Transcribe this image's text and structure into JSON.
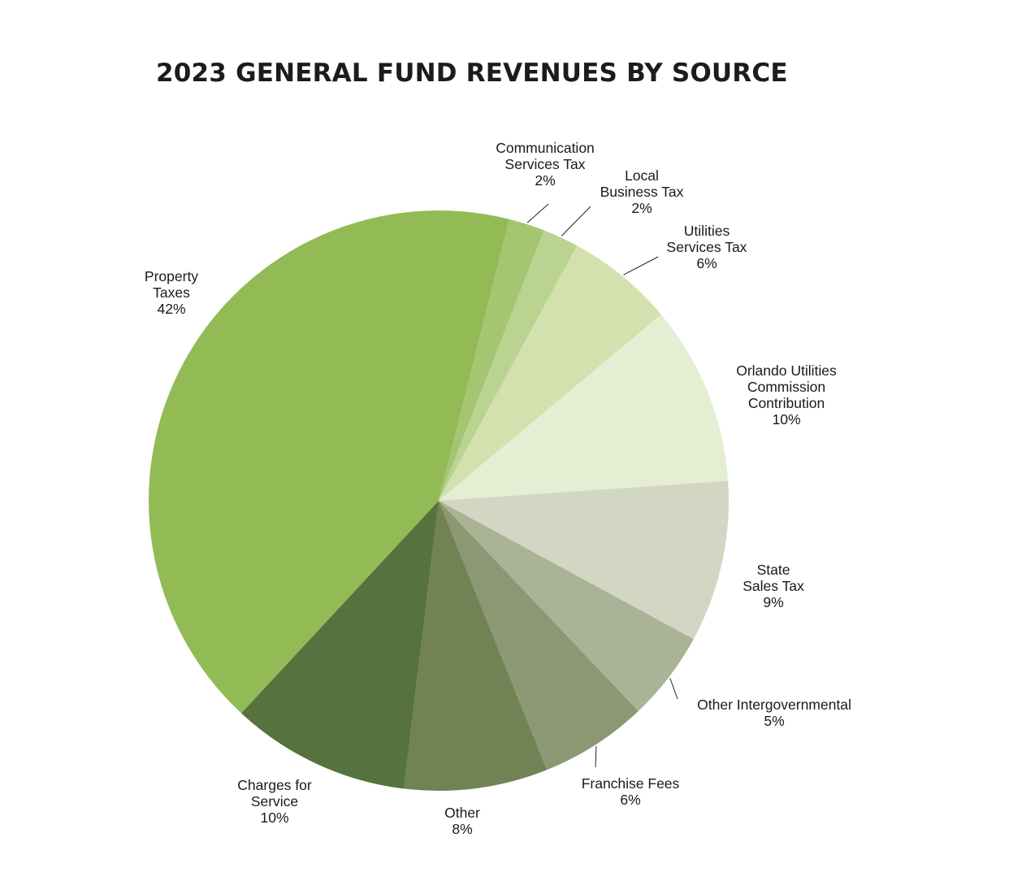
{
  "chart_data": {
    "type": "pie",
    "title": "2023 GENERAL FUND REVENUES BY SOURCE",
    "slices": [
      {
        "label_lines": [
          "Communication",
          "Services Tax"
        ],
        "label": "Communication Services Tax",
        "value": 2,
        "value_text": "2%",
        "color": "#a4c572"
      },
      {
        "label_lines": [
          "Local",
          "Business Tax"
        ],
        "label": "Local Business Tax",
        "value": 2,
        "value_text": "2%",
        "color": "#bad390"
      },
      {
        "label_lines": [
          "Utilities",
          "Services Tax"
        ],
        "label": "Utilities Services Tax",
        "value": 6,
        "value_text": "6%",
        "color": "#d2e1ae"
      },
      {
        "label_lines": [
          "Orlando Utilities",
          "Commission",
          "Contribution"
        ],
        "label": "Orlando Utilities Commission Contribution",
        "value": 10,
        "value_text": "10%",
        "color": "#e4eed3"
      },
      {
        "label_lines": [
          "State",
          "Sales Tax"
        ],
        "label": "State Sales Tax",
        "value": 9,
        "value_text": "9%",
        "color": "#d3d6c3"
      },
      {
        "label_lines": [
          "Other Intergovernmental"
        ],
        "label": "Other Intergovernmental",
        "value": 5,
        "value_text": "5%",
        "color": "#aab396"
      },
      {
        "label_lines": [
          "Franchise Fees"
        ],
        "label": "Franchise Fees",
        "value": 6,
        "value_text": "6%",
        "color": "#8c9873"
      },
      {
        "label_lines": [
          "Other"
        ],
        "label": "Other",
        "value": 8,
        "value_text": "8%",
        "color": "#718355"
      },
      {
        "label_lines": [
          "Charges for",
          "Service"
        ],
        "label": "Charges for Service",
        "value": 10,
        "value_text": "10%",
        "color": "#56723e"
      },
      {
        "label_lines": [
          "Property",
          "Taxes"
        ],
        "label": "Property Taxes",
        "value": 42,
        "value_text": "42%",
        "color": "#92bb56"
      }
    ]
  }
}
